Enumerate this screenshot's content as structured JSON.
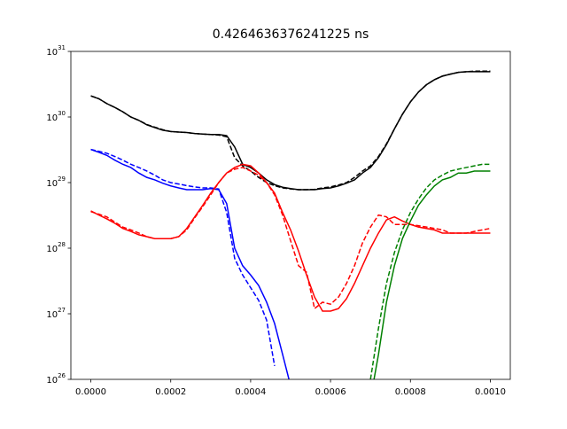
{
  "chart_data": {
    "type": "line",
    "title": "0.4264636376241225 ns",
    "log_y": true,
    "grid": false,
    "xlim": [
      -5e-05,
      0.00105
    ],
    "ylim": [
      1e+26,
      1e+31
    ],
    "xticks": [
      {
        "value": 0,
        "label": "0.0000"
      },
      {
        "value": 0.0002,
        "label": "0.0002"
      },
      {
        "value": 0.0004,
        "label": "0.0004"
      },
      {
        "value": 0.0006,
        "label": "0.0006"
      },
      {
        "value": 0.0008,
        "label": "0.0008"
      },
      {
        "value": 0.001,
        "label": "0.0010"
      }
    ],
    "yticks": [
      {
        "value": 1e+26,
        "label": "10^26"
      },
      {
        "value": 1e+27,
        "label": "10^27"
      },
      {
        "value": 1e+28,
        "label": "10^28"
      },
      {
        "value": 1e+29,
        "label": "10^29"
      },
      {
        "value": 1e+30,
        "label": "10^30"
      },
      {
        "value": 1e+31,
        "label": "10^31"
      }
    ],
    "x": [
      0,
      2e-05,
      4e-05,
      6e-05,
      8e-05,
      0.0001,
      0.00012,
      0.00014,
      0.00016,
      0.00018,
      0.0002,
      0.00022,
      0.00024,
      0.00026,
      0.00028,
      0.0003,
      0.00032,
      0.00034,
      0.00036,
      0.00038,
      0.0004,
      0.00042,
      0.00044,
      0.00046,
      0.00048,
      0.0005,
      0.00052,
      0.00054,
      0.00056,
      0.00058,
      0.0006,
      0.00062,
      0.00064,
      0.00066,
      0.00068,
      0.0007,
      0.00072,
      0.00074,
      0.00076,
      0.00078,
      0.0008,
      0.00082,
      0.00084,
      0.00086,
      0.00088,
      0.0009,
      0.00092,
      0.00094,
      0.00096,
      0.00098,
      0.001
    ],
    "series": [
      {
        "color": "#000000",
        "linestyle": "solid",
        "values": [
          2.1e+30,
          1.9e+30,
          1.6e+30,
          1.4e+30,
          1.2e+30,
          1e+30,
          8.9e+29,
          7.6e+29,
          6.9e+29,
          6.3e+29,
          6e+29,
          5.9e+29,
          5.8e+29,
          5.6e+29,
          5.5e+29,
          5.4e+29,
          5.4e+29,
          5.2e+29,
          3.5e+29,
          1.9e+29,
          1.7e+29,
          1.4e+29,
          1.1e+29,
          9.3e+28,
          8.5e+28,
          8.1e+28,
          7.8e+28,
          7.8e+28,
          7.8e+28,
          8.1e+28,
          8.3e+28,
          8.9e+28,
          9.8e+28,
          1.1e+29,
          1.4e+29,
          1.7e+29,
          2.4e+29,
          3.8e+29,
          6.6e+29,
          1.1e+30,
          1.7e+30,
          2.4e+30,
          3.1e+30,
          3.7e+30,
          4.2e+30,
          4.5e+30,
          4.8e+30,
          4.9e+30,
          4.9e+30,
          4.9e+30,
          4.9e+30
        ]
      },
      {
        "color": "#000000",
        "linestyle": "dashed",
        "values": [
          2.1e+30,
          1.9e+30,
          1.6e+30,
          1.4e+30,
          1.2e+30,
          1e+30,
          8.9e+29,
          7.7e+29,
          7e+29,
          6.4e+29,
          6e+29,
          5.9e+29,
          5.8e+29,
          5.6e+29,
          5.5e+29,
          5.4e+29,
          5.3e+29,
          5e+29,
          2.4e+29,
          1.8e+29,
          1.5e+29,
          1.2e+29,
          1e+29,
          9e+28,
          8.3e+28,
          8e+28,
          7.8e+28,
          7.8e+28,
          7.9e+28,
          8.3e+28,
          8.6e+28,
          9.2e+28,
          1e+29,
          1.2e+29,
          1.5e+29,
          1.8e+29,
          2.5e+29,
          3.9e+29,
          6.6e+29,
          1.1e+30,
          1.7e+30,
          2.4e+30,
          3.1e+30,
          3.7e+30,
          4.2e+30,
          4.5e+30,
          4.8e+30,
          4.9e+30,
          5e+30,
          5e+30,
          5e+30
        ]
      },
      {
        "color": "#0000ff",
        "linestyle": "solid",
        "values": [
          3.2e+29,
          2.9e+29,
          2.6e+29,
          2.2e+29,
          1.9e+29,
          1.7e+29,
          1.4e+29,
          1.2e+29,
          1.1e+29,
          9.8e+28,
          8.9e+28,
          8.3e+28,
          7.8e+28,
          7.8e+28,
          7.8e+28,
          8.1e+28,
          7.8e+28,
          4.8e+28,
          1e+28,
          5.4e+27,
          3.9e+27,
          2.7e+27,
          1.5e+27,
          7.1e+26,
          2.4e+26,
          8e+25,
          null,
          null,
          null,
          null,
          null,
          null,
          null,
          null,
          null,
          null,
          null,
          null,
          null,
          null,
          null,
          null,
          null,
          null,
          null,
          null,
          null,
          null,
          null,
          null,
          null
        ]
      },
      {
        "color": "#0000ff",
        "linestyle": "dashed",
        "values": [
          3.2e+29,
          3e+29,
          2.8e+29,
          2.5e+29,
          2.2e+29,
          1.9e+29,
          1.7e+29,
          1.5e+29,
          1.3e+29,
          1.1e+29,
          1e+29,
          9.5e+28,
          9e+28,
          8.6e+28,
          8.3e+28,
          8.3e+28,
          8e+28,
          3.5e+28,
          7e+27,
          3.9e+27,
          2.5e+27,
          1.6e+27,
          8e+26,
          1.6e+26,
          null,
          null,
          null,
          null,
          null,
          null,
          null,
          null,
          null,
          null,
          null,
          null,
          null,
          null,
          null,
          null,
          null,
          null,
          null,
          null,
          null,
          null,
          null,
          null,
          null,
          null,
          null
        ]
      },
      {
        "color": "#ff0000",
        "linestyle": "solid",
        "values": [
          3.7e+28,
          3.2e+28,
          2.8e+28,
          2.4e+28,
          2e+28,
          1.8e+28,
          1.6e+28,
          1.5e+28,
          1.4e+28,
          1.4e+28,
          1.4e+28,
          1.5e+28,
          2e+28,
          3e+28,
          4.5e+28,
          6.9e+28,
          1e+29,
          1.4e+29,
          1.7e+29,
          1.9e+29,
          1.8e+29,
          1.4e+29,
          1e+29,
          6.9e+28,
          3.5e+28,
          1.9e+28,
          9e+27,
          3.9e+27,
          1.8e+27,
          1.1e+27,
          1.1e+27,
          1.2e+27,
          1.7e+27,
          2.9e+27,
          5.4e+27,
          1e+28,
          1.7e+28,
          2.7e+28,
          3e+28,
          2.6e+28,
          2.3e+28,
          2.1e+28,
          2e+28,
          1.9e+28,
          1.7e+28,
          1.7e+28,
          1.7e+28,
          1.7e+28,
          1.7e+28,
          1.7e+28,
          1.7e+28
        ]
      },
      {
        "color": "#ff0000",
        "linestyle": "dashed",
        "values": [
          3.6e+28,
          3.3e+28,
          3e+28,
          2.5e+28,
          2.1e+28,
          1.9e+28,
          1.7e+28,
          1.5e+28,
          1.4e+28,
          1.4e+28,
          1.4e+28,
          1.5e+28,
          1.9e+28,
          2.9e+28,
          4.3e+28,
          6.5e+28,
          1e+29,
          1.4e+29,
          1.6e+29,
          1.7e+29,
          1.5e+29,
          1.3e+29,
          1e+29,
          6.5e+28,
          3.2e+28,
          1.3e+28,
          5.4e+27,
          4.3e+27,
          1.2e+27,
          1.5e+27,
          1.4e+27,
          1.8e+27,
          2.9e+27,
          5.4e+27,
          1.2e+28,
          2.1e+28,
          3.2e+28,
          3e+28,
          2.3e+28,
          2.3e+28,
          2.3e+28,
          2.2e+28,
          2.1e+28,
          2e+28,
          1.9e+28,
          1.7e+28,
          1.7e+28,
          1.7e+28,
          1.8e+28,
          1.9e+28,
          2e+28
        ]
      },
      {
        "color": "#008000",
        "linestyle": "solid",
        "values": [
          null,
          null,
          null,
          null,
          null,
          null,
          null,
          null,
          null,
          null,
          null,
          null,
          null,
          null,
          null,
          null,
          null,
          null,
          null,
          null,
          null,
          null,
          null,
          null,
          null,
          null,
          null,
          null,
          null,
          null,
          null,
          null,
          null,
          null,
          null,
          5e+25,
          2.4e+26,
          1.5e+27,
          5.4e+27,
          1.4e+28,
          2.6e+28,
          4.5e+28,
          6.5e+28,
          8.9e+28,
          1.1e+29,
          1.2e+29,
          1.4e+29,
          1.4e+29,
          1.5e+29,
          1.5e+29,
          1.5e+29
        ]
      },
      {
        "color": "#008000",
        "linestyle": "dashed",
        "values": [
          null,
          null,
          null,
          null,
          null,
          null,
          null,
          null,
          null,
          null,
          null,
          null,
          null,
          null,
          null,
          null,
          null,
          null,
          null,
          null,
          null,
          null,
          null,
          null,
          null,
          null,
          null,
          null,
          null,
          null,
          null,
          null,
          null,
          null,
          null,
          1e+26,
          6e+26,
          2.9e+27,
          8.6e+27,
          1.9e+28,
          3.5e+28,
          5.6e+28,
          8.3e+28,
          1.1e+29,
          1.3e+29,
          1.5e+29,
          1.6e+29,
          1.7e+29,
          1.8e+29,
          1.9e+29,
          1.9e+29
        ]
      }
    ]
  }
}
